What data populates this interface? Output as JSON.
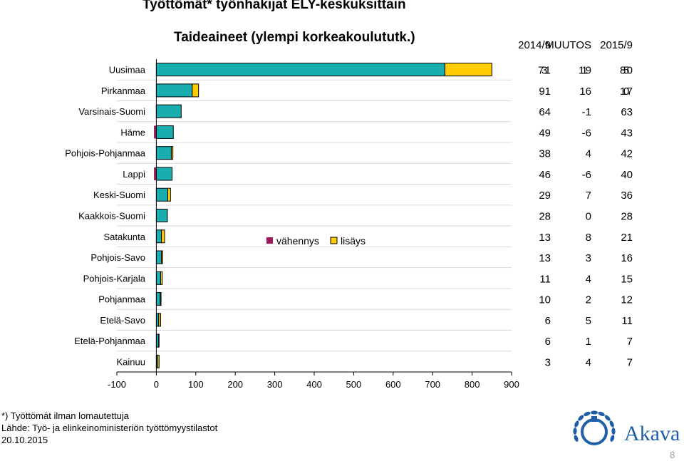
{
  "page": {
    "main_title": "Työttömät* työnhakijat ELY-keskuksittain",
    "footnote": "*) Työttömät ilman lomautettuja",
    "source": "Lähde: Työ- ja elinkeinoministeriön työttömyystilastot",
    "date": "20.10.2015",
    "page_number": "8",
    "logo_text": "Akava"
  },
  "colors": {
    "base": "#1AADAF",
    "increase": "#FFCC00",
    "decrease": "#A0195A",
    "logo": "#1F5FA8"
  },
  "chart_data": {
    "type": "bar",
    "orientation": "horizontal",
    "stacked": true,
    "title": "Taideaineet (ylempi korkeakoulututk.)",
    "categories": [
      "Uusimaa",
      "Pirkanmaa",
      "Varsinais-Suomi",
      "Häme",
      "Pohjois-Pohjanmaa",
      "Lappi",
      "Keski-Suomi",
      "Kaakkois-Suomi",
      "Satakunta",
      "Pohjois-Savo",
      "Pohjois-Karjala",
      "Pohjanmaa",
      "Etelä-Savo",
      "Etelä-Pohjanmaa",
      "Kainuu"
    ],
    "table_headers": [
      "2014/9",
      "MUUTOS",
      "2015/9"
    ],
    "values_2014_9": [
      731,
      91,
      64,
      49,
      38,
      46,
      29,
      28,
      13,
      13,
      11,
      10,
      6,
      6,
      3
    ],
    "muutos": [
      119,
      16,
      -1,
      -6,
      4,
      -6,
      7,
      0,
      8,
      3,
      4,
      2,
      5,
      1,
      4
    ],
    "values_2015_9": [
      850,
      107,
      63,
      43,
      42,
      40,
      36,
      28,
      21,
      16,
      15,
      12,
      11,
      7,
      7
    ],
    "legend": [
      {
        "key": "decrease",
        "label": "vähennys"
      },
      {
        "key": "increase",
        "label": "lisäys"
      }
    ],
    "xlim": [
      -100,
      900
    ],
    "x_ticks": [
      -100,
      0,
      100,
      200,
      300,
      400,
      500,
      600,
      700,
      800,
      900
    ],
    "x_tick_labels": [
      "-100",
      "0",
      "100",
      "200",
      "300",
      "400",
      "500",
      "600",
      "700",
      "800",
      "900"
    ],
    "grid": "vertical-lines-off, horizontal row separators"
  }
}
